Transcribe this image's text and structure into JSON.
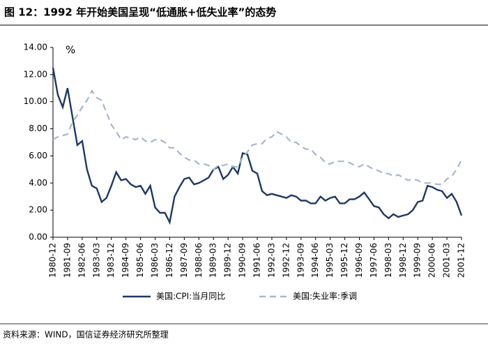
{
  "chart_data": {
    "type": "line",
    "title": "图 12：1992 年开始美国呈现“低通胀+低失业率”的态势",
    "annotation": "%",
    "source": "资料来源：WIND，国信证券经济研究所整理",
    "categories": [
      "1980-12",
      null,
      null,
      "1981-09",
      null,
      null,
      "1982-06",
      null,
      null,
      "1983-03",
      null,
      null,
      "1983-12",
      null,
      null,
      "1984-09",
      null,
      null,
      "1985-06",
      null,
      null,
      "1986-03",
      null,
      null,
      "1986-12",
      null,
      null,
      "1987-09",
      null,
      null,
      "1988-06",
      null,
      null,
      "1989-03",
      null,
      null,
      "1989-12",
      null,
      null,
      "1990-09",
      null,
      null,
      "1991-06",
      null,
      null,
      "1992-03",
      null,
      null,
      "1992-12",
      null,
      null,
      "1993-09",
      null,
      null,
      "1994-06",
      null,
      null,
      "1995-03",
      null,
      null,
      "1995-12",
      null,
      null,
      "1996-09",
      null,
      null,
      "1997-06",
      null,
      null,
      "1998-03",
      null,
      null,
      "1998-12",
      null,
      null,
      "1999-09",
      null,
      null,
      "2000-06",
      null,
      null,
      "2001-03",
      null,
      null,
      "2001-12"
    ],
    "series": [
      {
        "name": "美国:CPI:当月同比",
        "color": "#1f3864",
        "dash": false,
        "values": [
          12.5,
          10.5,
          9.6,
          11.0,
          8.9,
          6.8,
          7.1,
          5.0,
          3.8,
          3.6,
          2.6,
          2.9,
          3.8,
          4.8,
          4.2,
          4.3,
          3.9,
          3.7,
          3.8,
          3.2,
          3.8,
          2.2,
          1.8,
          1.8,
          1.1,
          3.0,
          3.7,
          4.3,
          4.4,
          3.9,
          4.0,
          4.2,
          4.4,
          5.0,
          5.2,
          4.3,
          4.6,
          5.2,
          4.7,
          6.2,
          6.1,
          4.9,
          4.7,
          3.4,
          3.1,
          3.2,
          3.1,
          3.0,
          2.9,
          3.1,
          3.0,
          2.7,
          2.7,
          2.5,
          2.5,
          3.0,
          2.7,
          2.9,
          3.0,
          2.5,
          2.5,
          2.8,
          2.8,
          3.0,
          3.3,
          2.8,
          2.3,
          2.2,
          1.7,
          1.4,
          1.7,
          1.5,
          1.6,
          1.7,
          2.0,
          2.6,
          2.7,
          3.8,
          3.7,
          3.5,
          3.4,
          2.9,
          3.2,
          2.6,
          1.6
        ]
      },
      {
        "name": "美国:失业率:季调",
        "color": "#a9b7c9",
        "dash": true,
        "values": [
          7.2,
          7.4,
          7.5,
          7.6,
          8.5,
          9.0,
          9.6,
          10.1,
          10.8,
          10.3,
          10.1,
          9.2,
          8.3,
          7.8,
          7.2,
          7.4,
          7.3,
          7.2,
          7.4,
          7.1,
          7.0,
          7.2,
          7.2,
          7.0,
          6.6,
          6.6,
          6.2,
          5.9,
          5.7,
          5.7,
          5.4,
          5.4,
          5.3,
          5.0,
          5.3,
          5.3,
          5.4,
          5.2,
          5.2,
          5.9,
          6.3,
          6.8,
          6.9,
          6.9,
          7.3,
          7.4,
          7.8,
          7.6,
          7.4,
          7.0,
          7.0,
          6.7,
          6.5,
          6.5,
          6.1,
          5.9,
          5.5,
          5.4,
          5.6,
          5.6,
          5.6,
          5.5,
          5.3,
          5.2,
          5.4,
          5.2,
          5.0,
          4.9,
          4.7,
          4.7,
          4.5,
          4.6,
          4.4,
          4.2,
          4.3,
          4.2,
          4.0,
          4.0,
          4.0,
          3.9,
          3.9,
          4.3,
          4.5,
          5.0,
          5.7
        ]
      }
    ],
    "ylim": [
      0,
      14
    ],
    "yticks": [
      {
        "value": 0,
        "label": "0.00"
      },
      {
        "value": 2,
        "label": "2.00"
      },
      {
        "value": 4,
        "label": "4.00"
      },
      {
        "value": 6,
        "label": "6.00"
      },
      {
        "value": 8,
        "label": "8.00"
      },
      {
        "value": 10,
        "label": "10.00"
      },
      {
        "value": 12,
        "label": "12.00"
      },
      {
        "value": 14,
        "label": "14.00"
      }
    ],
    "grid": false,
    "legend": "bottom"
  }
}
